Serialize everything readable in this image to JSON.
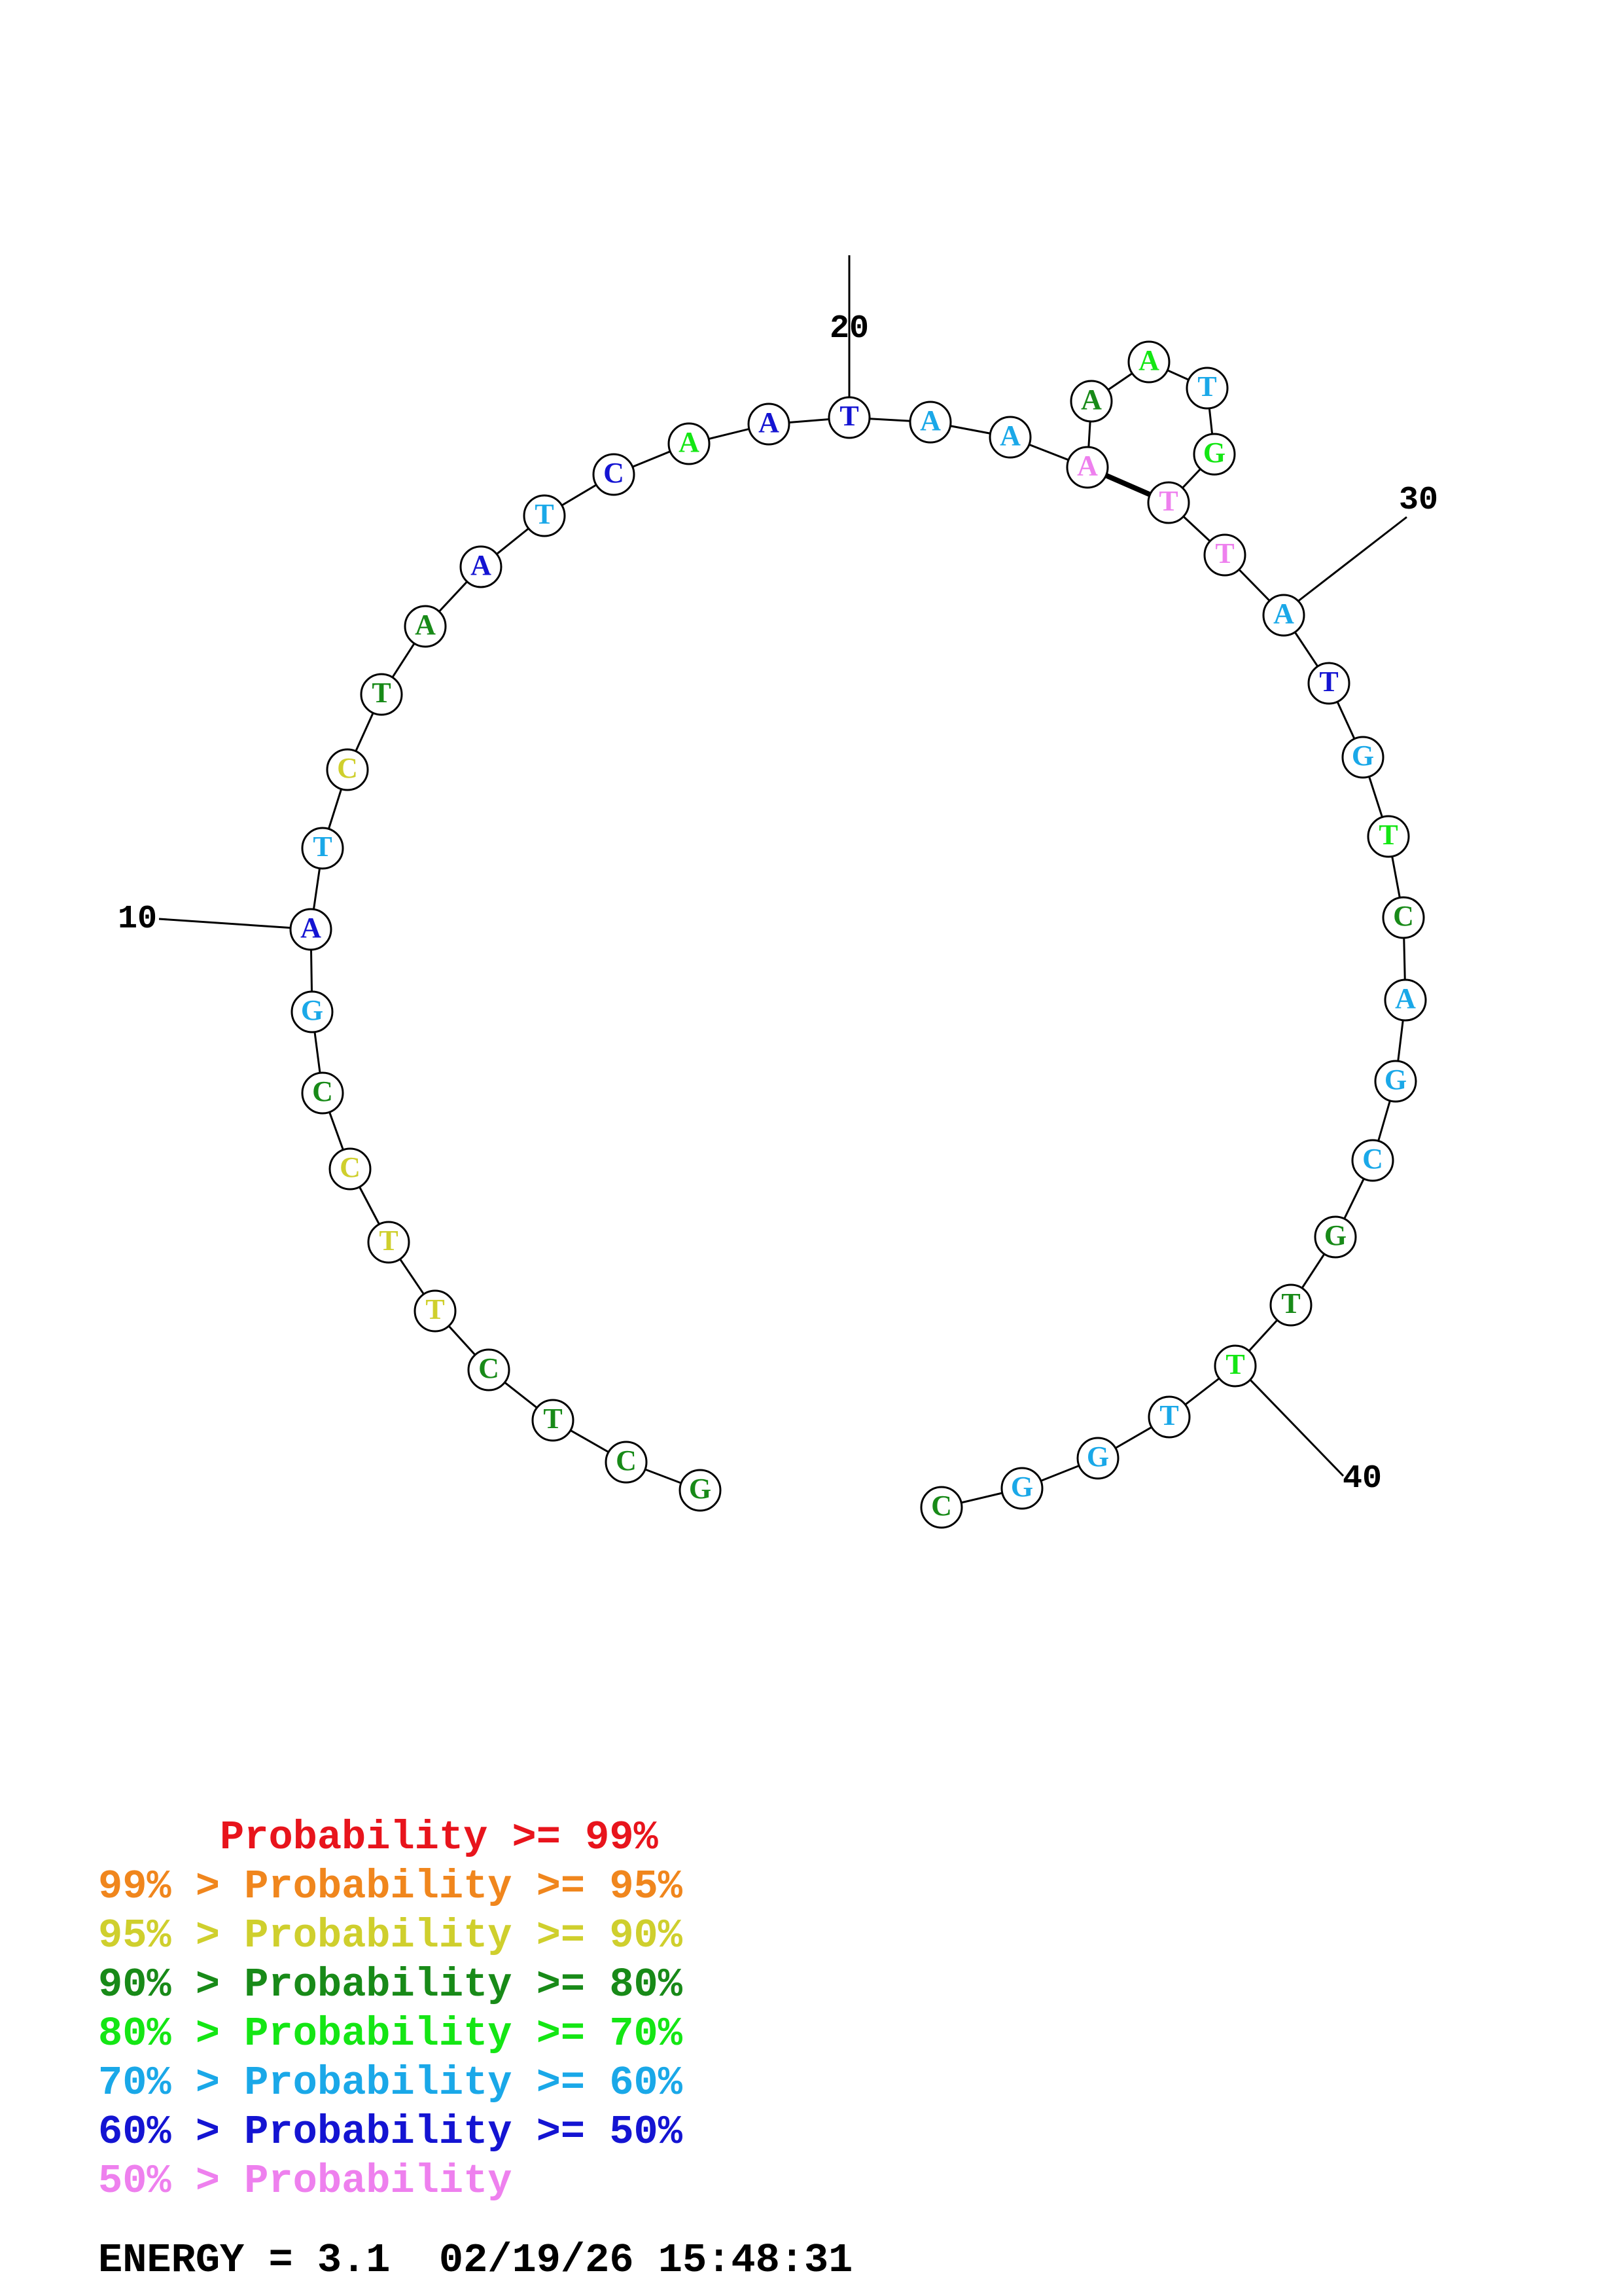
{
  "colors": {
    "c99": "#e8141c",
    "c95": "#f0861d",
    "c90": "#cfcf2d",
    "c80": "#188a18",
    "c70": "#14e614",
    "c60": "#1aa8e8",
    "c50": "#1414d2",
    "cLow": "#ee80ee"
  },
  "structure": {
    "sequence": [
      "G",
      "C",
      "T",
      "C",
      "T",
      "T",
      "C",
      "C",
      "G",
      "A",
      "T",
      "C",
      "T",
      "A",
      "A",
      "T",
      "C",
      "A",
      "A",
      "T",
      "A",
      "A",
      "A",
      "A",
      "A",
      "T",
      "G",
      "T",
      "T",
      "A",
      "T",
      "G",
      "T",
      "C",
      "A",
      "G",
      "C",
      "G",
      "T",
      "T",
      "T",
      "G",
      "G",
      "C"
    ],
    "nucleotide_colors": [
      "c80",
      "c80",
      "c80",
      "c80",
      "c90",
      "c90",
      "c90",
      "c80",
      "c60",
      "c50",
      "c60",
      "c90",
      "c80",
      "c80",
      "c50",
      "c60",
      "c50",
      "c70",
      "c50",
      "c50",
      "c60",
      "c60",
      "cLow",
      "c80",
      "c70",
      "c60",
      "c70",
      "cLow",
      "cLow",
      "c60",
      "c50",
      "c60",
      "c70",
      "c80",
      "c60",
      "c60",
      "c60",
      "c80",
      "c80",
      "c70",
      "c60",
      "c60",
      "c60",
      "c80"
    ],
    "pairs": [
      [
        23,
        28
      ]
    ],
    "index_labels": [
      {
        "position": 10,
        "text": "10"
      },
      {
        "position": 20,
        "text": "20"
      },
      {
        "position": 30,
        "text": "30"
      },
      {
        "position": 40,
        "text": "40"
      }
    ]
  },
  "legend": [
    {
      "prefix": "     ",
      "text": "Probability >= 99%",
      "color": "c99"
    },
    {
      "prefix": "99% > ",
      "text": "Probability >= 95%",
      "color": "c95"
    },
    {
      "prefix": "95% > ",
      "text": "Probability >= 90%",
      "color": "c90"
    },
    {
      "prefix": "90% > ",
      "text": "Probability >= 80%",
      "color": "c80"
    },
    {
      "prefix": "80% > ",
      "text": "Probability >= 70%",
      "color": "c70"
    },
    {
      "prefix": "70% > ",
      "text": "Probability >= 60%",
      "color": "c60"
    },
    {
      "prefix": "60% > ",
      "text": "Probability >= 50%",
      "color": "c50"
    },
    {
      "prefix": "50% > ",
      "text": "Probability",
      "color": "cLow"
    }
  ],
  "energy_text": "ENERGY = 3.1  02/19/26 15:48:31"
}
